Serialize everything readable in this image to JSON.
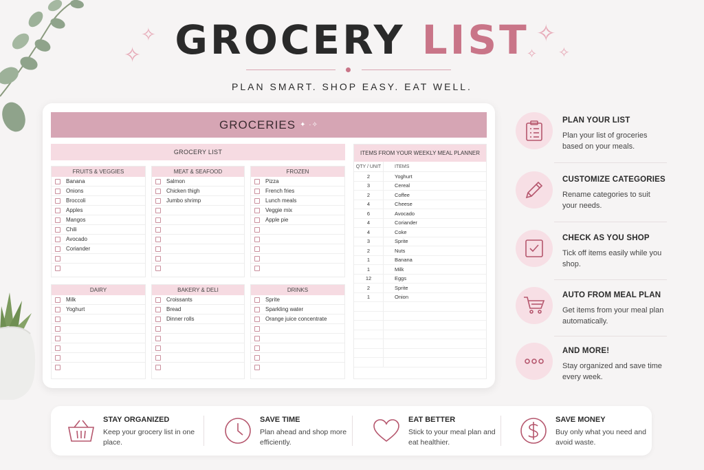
{
  "hero": {
    "title_part1": "GROCERY",
    "title_part2": "LIST",
    "tagline": "PLAN SMART. SHOP EASY. EAT WELL."
  },
  "card": {
    "banner": "GROCERIES",
    "grocery_list_header": "GROCERY LIST",
    "categories": [
      {
        "name": "FRUITS & VEGGIES",
        "items": [
          "Banana",
          "Onions",
          "Broccoli",
          "Apples",
          "Mangos",
          "Chili",
          "Avocado",
          "Coriander",
          "",
          ""
        ]
      },
      {
        "name": "MEAT & SEAFOOD",
        "items": [
          "Salmon",
          "Chicken thigh",
          "Jumbo shrimp",
          "",
          "",
          "",
          "",
          "",
          "",
          ""
        ]
      },
      {
        "name": "FROZEN",
        "items": [
          "Pizza",
          "French fries",
          "Lunch meals",
          "Veggie mix",
          "Apple pie",
          "",
          "",
          "",
          "",
          ""
        ]
      },
      {
        "name": "DAIRY",
        "items": [
          "Milk",
          "Yoghurt",
          "",
          "",
          "",
          "",
          "",
          "",
          ""
        ]
      },
      {
        "name": "BAKERY & DELI",
        "items": [
          "Croissants",
          "Bread",
          "Dinner rolls",
          "",
          "",
          "",
          "",
          "",
          ""
        ]
      },
      {
        "name": "DRINKS",
        "items": [
          "Sprite",
          "Sparkling water",
          "Orange juice concentrate",
          "",
          "",
          "",
          "",
          "",
          ""
        ]
      }
    ],
    "meal_planner": {
      "header": "ITEMS FROM YOUR WEEKLY MEAL PLANNER",
      "col_qty": "QTY / UNIT",
      "col_items": "ITEMS",
      "rows": [
        {
          "qty": "2",
          "item": "Yoghurt"
        },
        {
          "qty": "3",
          "item": "Cereal"
        },
        {
          "qty": "2",
          "item": "Coffee"
        },
        {
          "qty": "4",
          "item": "Cheese"
        },
        {
          "qty": "6",
          "item": "Avocado"
        },
        {
          "qty": "4",
          "item": "Coriander"
        },
        {
          "qty": "4",
          "item": "Coke"
        },
        {
          "qty": "3",
          "item": "Sprite"
        },
        {
          "qty": "2",
          "item": "Nuts"
        },
        {
          "qty": "1",
          "item": "Banana"
        },
        {
          "qty": "1",
          "item": "Milk"
        },
        {
          "qty": "12",
          "item": "Eggs"
        },
        {
          "qty": "2",
          "item": "Sprite"
        },
        {
          "qty": "1",
          "item": "Onion"
        }
      ]
    }
  },
  "features": [
    {
      "icon": "clipboard-list-icon",
      "title": "PLAN YOUR LIST",
      "desc": "Plan your list of groceries based on your meals."
    },
    {
      "icon": "pencil-icon",
      "title": "CUSTOMIZE CATEGORIES",
      "desc": "Rename categories to suit your needs."
    },
    {
      "icon": "checkbox-checked-icon",
      "title": "CHECK AS YOU SHOP",
      "desc": "Tick off items easily while you shop."
    },
    {
      "icon": "shopping-cart-icon",
      "title": "AUTO FROM MEAL PLAN",
      "desc": "Get items from your meal plan automatically."
    },
    {
      "icon": "more-dots-icon",
      "title": "AND MORE!",
      "desc": "Stay organized and save time every week."
    }
  ],
  "benefits": [
    {
      "icon": "basket-icon",
      "title": "STAY ORGANIZED",
      "desc": "Keep your grocery list in one place."
    },
    {
      "icon": "clock-icon",
      "title": "SAVE TIME",
      "desc": "Plan ahead and shop more efficiently."
    },
    {
      "icon": "heart-icon",
      "title": "EAT BETTER",
      "desc": "Stick to your meal plan and eat healthier."
    },
    {
      "icon": "dollar-icon",
      "title": "SAVE MONEY",
      "desc": "Buy only what you need and avoid waste."
    }
  ],
  "colors": {
    "accent": "#c97588",
    "banner": "#d6a5b4",
    "section_header": "#f6dbe2",
    "icon_bg": "#f7dfe5"
  }
}
